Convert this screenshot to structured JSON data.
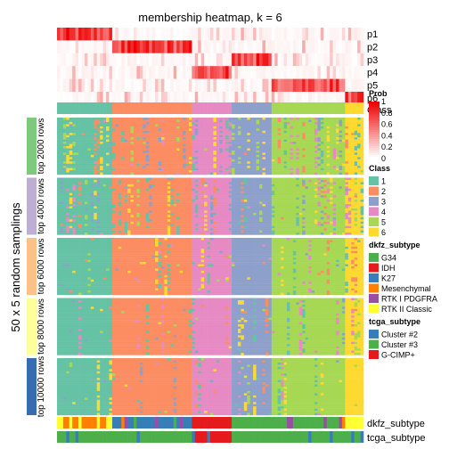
{
  "chart_data": {
    "type": "heatmap",
    "title": "membership heatmap, k = 6",
    "ylabel": "50 x 5 random samplings",
    "prob_rows": [
      "p1",
      "p2",
      "p3",
      "p4",
      "p5",
      "p6"
    ],
    "class_row_label": "Class",
    "n_samples": 100,
    "class_order": [
      "1",
      "2",
      "4",
      "3",
      "5",
      "6"
    ],
    "class_counts": [
      18,
      26,
      13,
      13,
      24,
      6
    ],
    "class_colors": {
      "1": "#66C2A5",
      "2": "#FC8D62",
      "3": "#8DA0CB",
      "4": "#E78AC3",
      "5": "#A6D854",
      "6": "#FFD92F"
    },
    "prob_color_scale": {
      "low": "#FFFFFF",
      "high": "#EE0000"
    },
    "prob_legend": {
      "title": "Prob",
      "ticks": [
        "0",
        "0.2",
        "0.4",
        "0.6",
        "0.8",
        "1"
      ]
    },
    "class_legend": {
      "title": "Class",
      "entries": [
        "1",
        "2",
        "3",
        "4",
        "5",
        "6"
      ]
    },
    "row_groups": [
      {
        "label": "top 2000 rows",
        "color": "#7FC97F"
      },
      {
        "label": "top 4000 rows",
        "color": "#BEAED4"
      },
      {
        "label": "top 6000 rows",
        "color": "#FDC086"
      },
      {
        "label": "top 8000 rows",
        "color": "#FFFF99"
      },
      {
        "label": "top 10000 rows",
        "color": "#386CB0"
      }
    ],
    "dkfz_subtype": {
      "title": "dkfz_subtype",
      "entries": [
        {
          "label": "G34",
          "color": "#4DAF4A"
        },
        {
          "label": "IDH",
          "color": "#E41A1C"
        },
        {
          "label": "K27",
          "color": "#377EB8"
        },
        {
          "label": "Mesenchymal",
          "color": "#FF7F00"
        },
        {
          "label": "RTK I PDGFRA",
          "color": "#984EA3"
        },
        {
          "label": "RTK II Classic",
          "color": "#FFFF33"
        }
      ]
    },
    "tcga_subtype": {
      "title": "tcga_subtype",
      "entries": [
        {
          "label": "Cluster #2",
          "color": "#377EB8"
        },
        {
          "label": "Cluster #3",
          "color": "#4DAF4A"
        },
        {
          "label": "G-CIMP+",
          "color": "#E41A1C"
        }
      ]
    },
    "bottom_labels": [
      "dkfz_subtype",
      "tcga_subtype"
    ]
  }
}
